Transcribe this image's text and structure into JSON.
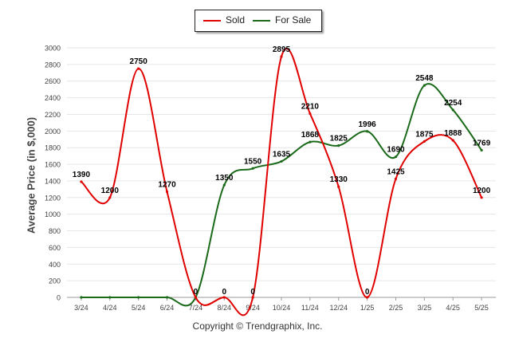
{
  "legend": {
    "sold_label": "Sold",
    "for_sale_label": "For Sale"
  },
  "footer": "Copyright © Trendgraphix, Inc.",
  "colors": {
    "sold": "#e00000",
    "for_sale": "#1a6a1a",
    "grid": "#e6e6e6",
    "axis": "#999999"
  },
  "chart_data": {
    "type": "line",
    "title": "",
    "xlabel": "",
    "ylabel": "Average Price (in $,000)",
    "ylim": [
      0,
      3000
    ],
    "yticks": [
      0,
      200,
      400,
      600,
      800,
      1000,
      1200,
      1400,
      1600,
      1800,
      2000,
      2200,
      2400,
      2600,
      2800,
      3000
    ],
    "grid": true,
    "legend_position": "top-center",
    "categories": [
      "3/24",
      "4/24",
      "5/24",
      "6/24",
      "7/24",
      "8/24",
      "9/24",
      "10/24",
      "11/24",
      "12/24",
      "1/25",
      "2/25",
      "3/25",
      "4/25",
      "5/25"
    ],
    "series": [
      {
        "name": "Sold",
        "color": "#e00000",
        "values": [
          1390,
          1200,
          2750,
          1270,
          0,
          0,
          0,
          2895,
          2210,
          1330,
          0,
          1425,
          1875,
          1888,
          1200
        ]
      },
      {
        "name": "For Sale",
        "color": "#1a6a1a",
        "values": [
          0,
          0,
          0,
          0,
          0,
          1350,
          1550,
          1635,
          1868,
          1825,
          1996,
          1690,
          2548,
          2254,
          1769
        ]
      }
    ]
  }
}
